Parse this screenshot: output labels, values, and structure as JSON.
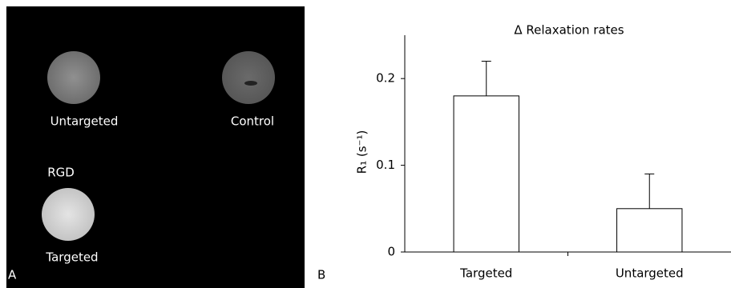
{
  "panel_a": {
    "label": "A",
    "samples": [
      "Untargeted",
      "Control",
      "RGD",
      "Targeted"
    ]
  },
  "panel_b": {
    "label": "B"
  },
  "chart_data": {
    "type": "bar",
    "title": "Δ Relaxation rates",
    "y_label": "R₁ (s⁻¹)",
    "categories": [
      "Targeted",
      "Untargeted"
    ],
    "values": [
      0.18,
      0.05
    ],
    "errors": [
      0.04,
      0.04
    ],
    "color": "#ffffff",
    "ylim": [
      0,
      0.25
    ],
    "yticks": [
      0,
      0.1,
      0.2
    ],
    "grid": false
  }
}
